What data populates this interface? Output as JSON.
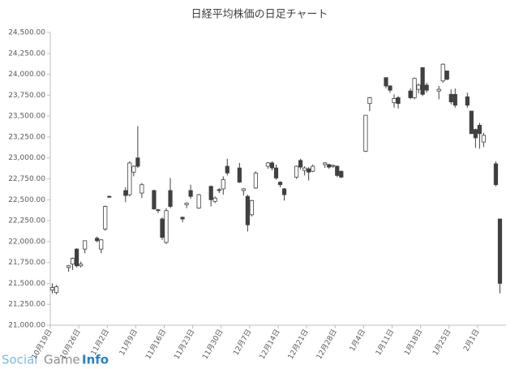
{
  "chart_data": {
    "type": "candlestick",
    "title": "日経平均株価の日足チャート",
    "watermark": {
      "part1": "Social",
      "part2": "Game",
      "part3": "Info"
    },
    "categories": [
      "10月19日",
      null,
      null,
      null,
      null,
      null,
      null,
      "10月26日",
      null,
      null,
      null,
      null,
      null,
      null,
      "11月2日",
      null,
      null,
      null,
      null,
      null,
      null,
      "11月9日",
      null,
      null,
      null,
      null,
      null,
      null,
      "11月16日",
      null,
      null,
      null,
      null,
      null,
      null,
      "11月23日",
      null,
      null,
      null,
      null,
      null,
      null,
      "11月30日",
      null,
      null,
      null,
      null,
      null,
      null,
      "12月7日",
      null,
      null,
      null,
      null,
      null,
      null,
      "12月14日",
      null,
      null,
      null,
      null,
      null,
      null,
      "12月21日",
      null,
      null,
      null,
      null,
      null,
      null,
      "12月28日",
      null,
      null,
      null,
      null,
      null,
      null,
      "1月4日",
      null,
      null,
      null,
      null,
      null,
      null,
      "1月11日",
      null,
      null,
      null,
      null,
      null,
      null,
      "1月18日",
      null,
      null,
      null,
      null,
      null,
      null,
      "1月25日",
      null,
      null,
      null,
      null,
      null,
      null,
      "2月1日",
      null,
      null,
      null,
      null,
      null,
      null
    ],
    "open": [
      21420,
      21390,
      null,
      null,
      21690,
      21730,
      21910,
      21710,
      21910,
      null,
      null,
      22040,
      21910,
      22150,
      22540,
      null,
      null,
      null,
      22610,
      22560,
      22830,
      23000,
      22580,
      null,
      null,
      22610,
      22380,
      22270,
      21990,
      22610,
      null,
      null,
      22290,
      22440,
      22610,
      null,
      22400,
      null,
      null,
      22660,
      22480,
      22620,
      22630,
      22900,
      null,
      null,
      22880,
      22610,
      22540,
      22320,
      22640,
      null,
      null,
      22900,
      22940,
      22880,
      22710,
      22630,
      null,
      null,
      22770,
      22970,
      22850,
      22870,
      22840,
      null,
      null,
      22920,
      22920,
      22900,
      22900,
      22840,
      null,
      null,
      null,
      null,
      null,
      23080,
      23650,
      null,
      null,
      null,
      23960,
      23860,
      23660,
      23720,
      null,
      null,
      23800,
      23720,
      23820,
      24080,
      23870,
      null,
      null,
      23800,
      23920,
      24040,
      23760,
      23760,
      null,
      null,
      23730,
      23560,
      23340,
      23390,
      23190,
      null,
      null,
      22930,
      22270,
      null
    ],
    "high": [
      21500,
      21480,
      null,
      null,
      21720,
      21810,
      21920,
      21760,
      22010,
      null,
      null,
      22060,
      22030,
      22430,
      22550,
      null,
      null,
      null,
      22650,
      22960,
      22910,
      23380,
      22700,
      null,
      null,
      22620,
      22390,
      22290,
      22400,
      22760,
      null,
      null,
      22300,
      22470,
      22680,
      null,
      22570,
      null,
      null,
      22670,
      22540,
      22640,
      22780,
      22990,
      null,
      null,
      22940,
      22640,
      22560,
      22500,
      22840,
      null,
      null,
      22950,
      22960,
      22920,
      22720,
      22640,
      null,
      null,
      22910,
      22990,
      22900,
      22890,
      22920,
      null,
      null,
      22950,
      22930,
      22920,
      22910,
      22850,
      null,
      null,
      null,
      null,
      null,
      23510,
      23730,
      null,
      null,
      null,
      23960,
      23870,
      23760,
      23740,
      null,
      null,
      23830,
      23960,
      23890,
      24080,
      23900,
      null,
      null,
      23860,
      24130,
      24040,
      23820,
      23830,
      null,
      null,
      23780,
      23560,
      23350,
      23420,
      23300,
      null,
      null,
      22960,
      22270,
      null
    ],
    "low": [
      21380,
      21370,
      null,
      null,
      21640,
      21660,
      21690,
      21690,
      21860,
      null,
      null,
      21990,
      21860,
      22130,
      22520,
      null,
      null,
      null,
      22470,
      22540,
      22780,
      22880,
      22520,
      null,
      null,
      22380,
      22340,
      22020,
      21970,
      22400,
      null,
      null,
      22230,
      22400,
      22510,
      null,
      22390,
      null,
      null,
      22420,
      22460,
      22580,
      22560,
      22790,
      null,
      null,
      22700,
      22550,
      22120,
      22300,
      22630,
      null,
      null,
      22870,
      22850,
      22740,
      22650,
      22490,
      null,
      null,
      22750,
      22860,
      22790,
      22730,
      22830,
      null,
      null,
      22880,
      22870,
      22880,
      22770,
      22760,
      null,
      null,
      null,
      null,
      null,
      23070,
      23560,
      null,
      null,
      null,
      23830,
      23780,
      23600,
      23590,
      null,
      null,
      23700,
      23700,
      23770,
      23740,
      23780,
      null,
      null,
      23700,
      23900,
      23930,
      23640,
      23600,
      null,
      null,
      23600,
      23290,
      23120,
      23110,
      23130,
      null,
      null,
      22660,
      21380,
      null
    ],
    "close": [
      21450,
      21460,
      null,
      null,
      21710,
      21800,
      21710,
      21730,
      22010,
      null,
      null,
      22010,
      22020,
      22420,
      22530,
      null,
      null,
      null,
      22550,
      22940,
      22900,
      22900,
      22680,
      null,
      null,
      22390,
      22370,
      22050,
      22370,
      22420,
      null,
      null,
      22270,
      22460,
      22540,
      null,
      22560,
      null,
      null,
      22500,
      22520,
      22610,
      22740,
      22820,
      null,
      null,
      22710,
      22630,
      22200,
      22490,
      22820,
      null,
      null,
      22940,
      22880,
      22760,
      22680,
      22560,
      null,
      null,
      22900,
      22890,
      22880,
      22830,
      22900,
      null,
      null,
      22940,
      22890,
      22910,
      22790,
      22770,
      null,
      null,
      null,
      null,
      null,
      23510,
      23720,
      null,
      null,
      null,
      23860,
      23810,
      23710,
      23650,
      null,
      null,
      23720,
      23950,
      23870,
      23760,
      23810,
      null,
      null,
      23820,
      24120,
      23940,
      23670,
      23630,
      null,
      null,
      23630,
      23290,
      23240,
      23290,
      23270,
      null,
      null,
      22680,
      21500,
      null
    ],
    "up_color": "#ffffff",
    "down_color": "#404040",
    "ylim": [
      21000,
      24500
    ],
    "yticks": [
      {
        "value": 21000,
        "label": "21,000.00"
      },
      {
        "value": 21250,
        "label": "21,250.00"
      },
      {
        "value": 21500,
        "label": "21,500.00"
      },
      {
        "value": 21750,
        "label": "21,750.00"
      },
      {
        "value": 22000,
        "label": "22,000.00"
      },
      {
        "value": 22250,
        "label": "22,250.00"
      },
      {
        "value": 22500,
        "label": "22,500.00"
      },
      {
        "value": 22750,
        "label": "22,750.00"
      },
      {
        "value": 23000,
        "label": "23,000.00"
      },
      {
        "value": 23250,
        "label": "23,250.00"
      },
      {
        "value": 23500,
        "label": "23,500.00"
      },
      {
        "value": 23750,
        "label": "23,750.00"
      },
      {
        "value": 24000,
        "label": "24,000.00"
      },
      {
        "value": 24250,
        "label": "24,250.00"
      },
      {
        "value": 24500,
        "label": "24,500.00"
      }
    ],
    "grid": false
  }
}
